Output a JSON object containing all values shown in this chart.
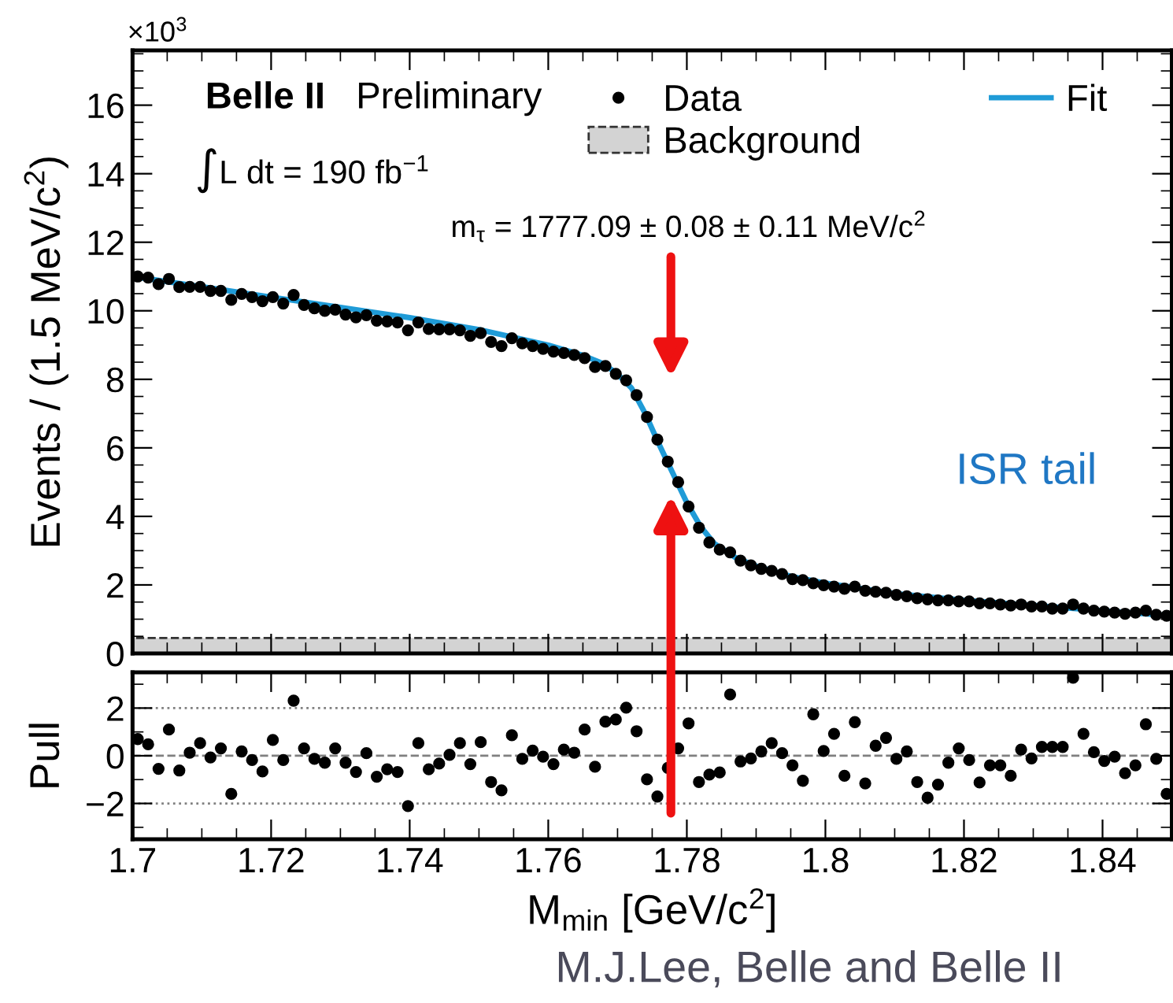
{
  "chart_data": [
    {
      "type": "scatter",
      "ylabel": "Events / (1.5 MeV/c$^{2}$)",
      "xlim": [
        1.7,
        1.85
      ],
      "ylim": [
        0,
        17.6
      ],
      "yticks": [
        0,
        2,
        4,
        6,
        8,
        10,
        12,
        14,
        16
      ],
      "xticks": [
        1.7,
        1.72,
        1.74,
        1.76,
        1.78,
        1.8,
        1.82,
        1.84
      ],
      "tick_labels": "y",
      "legend": "top right",
      "x": [
        1.70075,
        1.70225,
        1.70375,
        1.70525,
        1.70675,
        1.70825,
        1.70975,
        1.71125,
        1.71275,
        1.71425,
        1.71575,
        1.71725,
        1.71875,
        1.72025,
        1.72175,
        1.72325,
        1.72475,
        1.72625,
        1.72775,
        1.72925,
        1.73075,
        1.73225,
        1.73375,
        1.73525,
        1.73675,
        1.73825,
        1.73975,
        1.74125,
        1.74275,
        1.74425,
        1.74575,
        1.74725,
        1.74875,
        1.75025,
        1.75175,
        1.75325,
        1.75475,
        1.75625,
        1.75775,
        1.75925,
        1.76075,
        1.76225,
        1.76375,
        1.76525,
        1.76675,
        1.76825,
        1.76975,
        1.77125,
        1.77275,
        1.77425,
        1.77575,
        1.77725,
        1.77875,
        1.78025,
        1.78175,
        1.78325,
        1.78475,
        1.78625,
        1.78775,
        1.78925,
        1.79075,
        1.79225,
        1.79375,
        1.79525,
        1.79675,
        1.79825,
        1.79975,
        1.80125,
        1.80275,
        1.80425,
        1.80575,
        1.80725,
        1.80875,
        1.81025,
        1.81175,
        1.81325,
        1.81475,
        1.81625,
        1.81775,
        1.81925,
        1.82075,
        1.82225,
        1.82375,
        1.82525,
        1.82675,
        1.82825,
        1.82975,
        1.83125,
        1.83275,
        1.83425,
        1.83575,
        1.83725,
        1.83875,
        1.84025,
        1.84175,
        1.84325,
        1.84475,
        1.84625,
        1.84775,
        1.84925
      ],
      "series": [
        {
          "name": "Background",
          "type": "area",
          "color": "#d3d3d3",
          "line_style": "dashed",
          "x": [
            1.7,
            1.85
          ],
          "values": [
            0.45,
            0.45
          ]
        },
        {
          "name": "Fit",
          "type": "line",
          "color": "#1f9bd7",
          "x": [
            1.7,
            1.71,
            1.72,
            1.73,
            1.74,
            1.75,
            1.76,
            1.765,
            1.768,
            1.77,
            1.772,
            1.774,
            1.776,
            1.778,
            1.78,
            1.782,
            1.784,
            1.787,
            1.79,
            1.795,
            1.8,
            1.81,
            1.82,
            1.83,
            1.84,
            1.85
          ],
          "values": [
            11.0,
            10.7,
            10.4,
            10.1,
            9.8,
            9.45,
            9.0,
            8.7,
            8.45,
            8.15,
            7.75,
            7.0,
            6.1,
            5.25,
            4.4,
            3.7,
            3.2,
            2.8,
            2.55,
            2.25,
            2.05,
            1.75,
            1.55,
            1.4,
            1.25,
            1.1
          ]
        },
        {
          "name": "Data",
          "color": "#000000",
          "marker": "circle",
          "values": [
            11.0,
            10.97,
            10.78,
            10.93,
            10.69,
            10.7,
            10.7,
            10.58,
            10.58,
            10.32,
            10.49,
            10.4,
            10.28,
            10.4,
            10.21,
            10.46,
            10.17,
            10.07,
            10.0,
            10.03,
            9.89,
            9.81,
            9.87,
            9.71,
            9.69,
            9.66,
            9.43,
            9.66,
            9.47,
            9.46,
            9.46,
            9.43,
            9.27,
            9.35,
            9.09,
            8.97,
            9.2,
            9.05,
            8.97,
            8.89,
            8.81,
            8.77,
            8.71,
            8.62,
            8.36,
            8.39,
            8.16,
            7.97,
            7.54,
            6.9,
            6.24,
            5.6,
            5.0,
            4.29,
            3.67,
            3.24,
            3.03,
            2.95,
            2.71,
            2.57,
            2.47,
            2.41,
            2.32,
            2.17,
            2.14,
            2.05,
            1.99,
            1.95,
            1.89,
            1.95,
            1.83,
            1.8,
            1.77,
            1.71,
            1.67,
            1.61,
            1.58,
            1.55,
            1.55,
            1.52,
            1.52,
            1.46,
            1.46,
            1.43,
            1.4,
            1.43,
            1.37,
            1.37,
            1.31,
            1.31,
            1.43,
            1.31,
            1.25,
            1.22,
            1.19,
            1.16,
            1.19,
            1.25,
            1.13,
            1.1
          ]
        }
      ],
      "annotations": [
        "×10$^{3}$",
        "Belle II",
        "Preliminary",
        "∫L dt = 190 fb$^{−1}$",
        "m$_{τ}$ = 1777.09 ± 0.08 ± 0.11 MeV/c$^{2}$",
        "ISR tail"
      ]
    },
    {
      "type": "scatter",
      "ylabel": "Pull",
      "xlabel": "M$_{min}$ [GeV/c$^{2}$]",
      "xlim": [
        1.7,
        1.85
      ],
      "ylim": [
        -3.5,
        3.5
      ],
      "yticks": [
        {
          "value": -2,
          "label": "−2"
        },
        0,
        2
      ],
      "xticks": [
        1.7,
        1.72,
        1.74,
        1.76,
        1.78,
        1.8,
        1.82,
        1.84
      ],
      "marker": "circle",
      "x": [
        1.70075,
        1.70225,
        1.70375,
        1.70525,
        1.70675,
        1.70825,
        1.70975,
        1.71125,
        1.71275,
        1.71425,
        1.71575,
        1.71725,
        1.71875,
        1.72025,
        1.72175,
        1.72325,
        1.72475,
        1.72625,
        1.72775,
        1.72925,
        1.73075,
        1.73225,
        1.73375,
        1.73525,
        1.73675,
        1.73825,
        1.73975,
        1.74125,
        1.74275,
        1.74425,
        1.74575,
        1.74725,
        1.74875,
        1.75025,
        1.75175,
        1.75325,
        1.75475,
        1.75625,
        1.75775,
        1.75925,
        1.76075,
        1.76225,
        1.76375,
        1.76525,
        1.76675,
        1.76825,
        1.76975,
        1.77125,
        1.77275,
        1.77425,
        1.77575,
        1.77725,
        1.77875,
        1.78025,
        1.78175,
        1.78325,
        1.78475,
        1.78625,
        1.78775,
        1.78925,
        1.79075,
        1.79225,
        1.79375,
        1.79525,
        1.79675,
        1.79825,
        1.79975,
        1.80125,
        1.80275,
        1.80425,
        1.80575,
        1.80725,
        1.80875,
        1.81025,
        1.81175,
        1.81325,
        1.81475,
        1.81625,
        1.81775,
        1.81925,
        1.82075,
        1.82225,
        1.82375,
        1.82525,
        1.82675,
        1.82825,
        1.82975,
        1.83125,
        1.83275,
        1.83425,
        1.83575,
        1.83725,
        1.83875,
        1.84025,
        1.84175,
        1.84325,
        1.84475,
        1.84625,
        1.84775,
        1.84925
      ],
      "series": [
        {
          "color": "#000000",
          "values": [
            0.7,
            0.48,
            -0.55,
            1.1,
            -0.62,
            0.13,
            0.53,
            -0.07,
            0.31,
            -1.6,
            0.18,
            -0.18,
            -0.66,
            0.66,
            -0.18,
            2.31,
            0.31,
            -0.13,
            -0.29,
            0.31,
            -0.29,
            -0.68,
            0.11,
            -0.88,
            -0.57,
            -0.68,
            -2.11,
            0.53,
            -0.57,
            -0.33,
            0.04,
            0.53,
            -0.35,
            0.57,
            -1.1,
            -1.45,
            0.86,
            -0.13,
            0.22,
            -0.04,
            -0.35,
            0.26,
            0.13,
            1.1,
            -0.46,
            1.43,
            1.52,
            2.02,
            1.03,
            -0.99,
            -1.71,
            -0.51,
            0.31,
            1.36,
            -1.1,
            -0.79,
            -0.7,
            2.57,
            -0.24,
            -0.11,
            0.18,
            0.53,
            0.11,
            -0.4,
            -1.05,
            1.74,
            0.2,
            0.92,
            -0.84,
            1.41,
            -1.16,
            0.42,
            0.75,
            -0.13,
            0.18,
            -1.1,
            -1.76,
            -1.21,
            -0.29,
            0.31,
            -0.18,
            -1.12,
            -0.4,
            -0.4,
            -0.84,
            0.26,
            -0.11,
            0.37,
            0.37,
            0.37,
            3.27,
            0.92,
            0.15,
            -0.22,
            -0.04,
            -0.73,
            -0.4,
            1.32,
            -0.13,
            -1.6
          ]
        }
      ],
      "ref_lines": [
        {
          "axis": "y",
          "value": 0,
          "color": "#808080",
          "line_style": "dashed"
        },
        {
          "axis": "y",
          "value": 2,
          "color": "#808080",
          "line_style": "dotted"
        },
        {
          "axis": "y",
          "value": -2,
          "color": "#808080",
          "line_style": "dotted"
        }
      ],
      "annotations": [
        "M.J.Lee, Belle and Belle II"
      ]
    }
  ]
}
